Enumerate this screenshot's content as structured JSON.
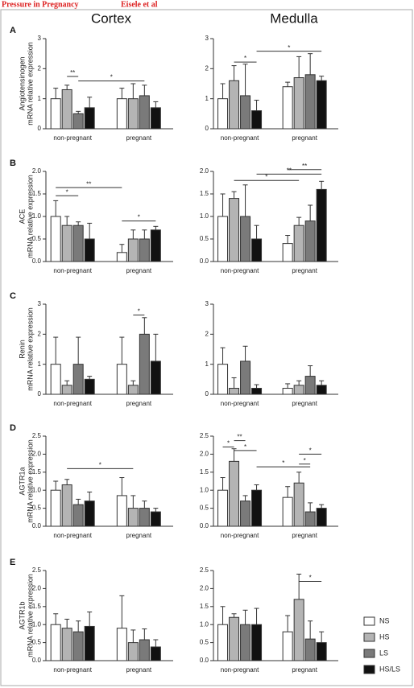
{
  "header": {
    "title": "Pressure in Pregnancy",
    "authors": "Eisele et al"
  },
  "columns": [
    "Cortex",
    "Medulla"
  ],
  "panels": [
    "A",
    "B",
    "C",
    "D",
    "E"
  ],
  "legend": [
    {
      "name": "NS",
      "color": "#ffffff"
    },
    {
      "name": "HS",
      "color": "#b4b4b4"
    },
    {
      "name": "LS",
      "color": "#7a7a7a"
    },
    {
      "name": "HS/LS",
      "color": "#111111"
    }
  ],
  "chart_data": [
    {
      "type": "bar",
      "ylabel": [
        "Angiotensinogen",
        "mRNA relative expression"
      ],
      "categories": [
        "non-pregnant",
        "pregnant"
      ],
      "ylim": [
        0,
        3
      ],
      "yticks": [
        0,
        1,
        2,
        3
      ],
      "series": [
        {
          "values": [
            1.0,
            1.0
          ],
          "errors": [
            0.35,
            0.35
          ]
        },
        {
          "values": [
            1.3,
            1.0
          ],
          "errors": [
            0.15,
            0.5
          ]
        },
        {
          "values": [
            0.5,
            1.1
          ],
          "errors": [
            0.08,
            0.35
          ]
        },
        {
          "values": [
            0.7,
            0.7
          ],
          "errors": [
            0.35,
            0.2
          ]
        }
      ],
      "annotations": [
        "**",
        "*"
      ]
    },
    {
      "type": "bar",
      "categories": [
        "non-pregnant",
        "pregnant"
      ],
      "ylim": [
        0,
        3
      ],
      "yticks": [
        0,
        1,
        2,
        3
      ],
      "series": [
        {
          "values": [
            1.0,
            1.4
          ],
          "errors": [
            0.5,
            0.15
          ]
        },
        {
          "values": [
            1.6,
            1.7
          ],
          "errors": [
            0.5,
            0.7
          ]
        },
        {
          "values": [
            1.1,
            1.8
          ],
          "errors": [
            1.05,
            0.7
          ]
        },
        {
          "values": [
            0.6,
            1.6
          ],
          "errors": [
            0.35,
            0.15
          ]
        }
      ],
      "annotations": [
        "*",
        "*"
      ]
    },
    {
      "type": "bar",
      "ylabel": [
        "ACE",
        "mRNA relative expression"
      ],
      "categories": [
        "non-pregnant",
        "pregnant"
      ],
      "ylim": [
        0,
        2
      ],
      "yticks": [
        {
          "value": 0,
          "label": "0.0"
        },
        {
          "value": 0.5,
          "label": "0.5"
        },
        {
          "value": 1,
          "label": "1.0"
        },
        {
          "value": 1.5,
          "label": "1.5"
        },
        {
          "value": 2,
          "label": "2.0"
        }
      ],
      "series": [
        {
          "values": [
            1.0,
            0.2
          ],
          "errors": [
            0.35,
            0.18
          ]
        },
        {
          "values": [
            0.8,
            0.5
          ],
          "errors": [
            0.2,
            0.2
          ]
        },
        {
          "values": [
            0.8,
            0.5
          ],
          "errors": [
            0.08,
            0.2
          ]
        },
        {
          "values": [
            0.5,
            0.7
          ],
          "errors": [
            0.35,
            0.08
          ]
        }
      ],
      "annotations": [
        "**",
        "*",
        "*"
      ]
    },
    {
      "type": "bar",
      "categories": [
        "non-pregnant",
        "pregnant"
      ],
      "ylim": [
        0,
        2
      ],
      "yticks": [
        {
          "value": 0,
          "label": "0.0"
        },
        {
          "value": 0.5,
          "label": "0.5"
        },
        {
          "value": 1,
          "label": "1.0"
        },
        {
          "value": 1.5,
          "label": "1.5"
        },
        {
          "value": 2,
          "label": "2.0"
        }
      ],
      "series": [
        {
          "values": [
            1.0,
            0.4
          ],
          "errors": [
            0.5,
            0.18
          ]
        },
        {
          "values": [
            1.4,
            0.8
          ],
          "errors": [
            0.15,
            0.18
          ]
        },
        {
          "values": [
            1.0,
            0.9
          ],
          "errors": [
            0.7,
            0.35
          ]
        },
        {
          "values": [
            0.5,
            1.6
          ],
          "errors": [
            0.3,
            0.18
          ]
        }
      ],
      "annotations": [
        "**",
        "**",
        "*"
      ]
    },
    {
      "type": "bar",
      "ylabel": [
        "Renin",
        "mRNA relative expression"
      ],
      "categories": [
        "non-pregnant",
        "pregnant"
      ],
      "ylim": [
        0,
        3
      ],
      "yticks": [
        0,
        1,
        2,
        3
      ],
      "series": [
        {
          "values": [
            1.0,
            1.0
          ],
          "errors": [
            0.9,
            0.9
          ]
        },
        {
          "values": [
            0.3,
            0.3
          ],
          "errors": [
            0.15,
            0.15
          ]
        },
        {
          "values": [
            1.0,
            2.0
          ],
          "errors": [
            0.9,
            0.55
          ]
        },
        {
          "values": [
            0.5,
            1.1
          ],
          "errors": [
            0.1,
            0.9
          ]
        }
      ],
      "annotations": [
        "*"
      ]
    },
    {
      "type": "bar",
      "categories": [
        "non-pregnant",
        "pregnant"
      ],
      "ylim": [
        0,
        3
      ],
      "yticks": [
        0,
        1,
        2,
        3
      ],
      "series": [
        {
          "values": [
            1.0,
            0.2
          ],
          "errors": [
            0.55,
            0.15
          ]
        },
        {
          "values": [
            0.2,
            0.3
          ],
          "errors": [
            0.35,
            0.15
          ]
        },
        {
          "values": [
            1.1,
            0.6
          ],
          "errors": [
            0.5,
            0.35
          ]
        },
        {
          "values": [
            0.2,
            0.3
          ],
          "errors": [
            0.12,
            0.15
          ]
        }
      ],
      "annotations": []
    },
    {
      "type": "bar",
      "ylabel": [
        "AGTR1a",
        "mRNA relative expression"
      ],
      "categories": [
        "non-pregnant",
        "pregnant"
      ],
      "ylim": [
        0,
        2.5
      ],
      "yticks": [
        {
          "value": 0,
          "label": "0.0"
        },
        {
          "value": 0.5,
          "label": "0.5"
        },
        {
          "value": 1,
          "label": "1.0"
        },
        {
          "value": 1.5,
          "label": "1.5"
        },
        {
          "value": 2,
          "label": "2.0"
        },
        {
          "value": 2.5,
          "label": "2.5"
        }
      ],
      "series": [
        {
          "values": [
            1.0,
            0.85
          ],
          "errors": [
            0.25,
            0.5
          ]
        },
        {
          "values": [
            1.15,
            0.5
          ],
          "errors": [
            0.15,
            0.35
          ]
        },
        {
          "values": [
            0.6,
            0.5
          ],
          "errors": [
            0.15,
            0.2
          ]
        },
        {
          "values": [
            0.7,
            0.4
          ],
          "errors": [
            0.25,
            0.1
          ]
        }
      ],
      "annotations": [
        "*"
      ]
    },
    {
      "type": "bar",
      "categories": [
        "non-pregnant",
        "pregnant"
      ],
      "ylim": [
        0,
        2.5
      ],
      "yticks": [
        {
          "value": 0,
          "label": "0.0"
        },
        {
          "value": 0.5,
          "label": "0.5"
        },
        {
          "value": 1,
          "label": "1.0"
        },
        {
          "value": 1.5,
          "label": "1.5"
        },
        {
          "value": 2,
          "label": "2.0"
        },
        {
          "value": 2.5,
          "label": "2.5"
        }
      ],
      "series": [
        {
          "values": [
            1.0,
            0.8
          ],
          "errors": [
            0.35,
            0.3
          ]
        },
        {
          "values": [
            1.8,
            1.2
          ],
          "errors": [
            0.35,
            0.3
          ]
        },
        {
          "values": [
            0.7,
            0.4
          ],
          "errors": [
            0.15,
            0.25
          ]
        },
        {
          "values": [
            1.0,
            0.5
          ],
          "errors": [
            0.15,
            0.1
          ]
        }
      ],
      "annotations": [
        "*",
        "**",
        "*",
        "*",
        "*",
        "*"
      ]
    },
    {
      "type": "bar",
      "ylabel": [
        "AGTR1b",
        "mRNA relative expression"
      ],
      "categories": [
        "non-pregnant",
        "pregnant"
      ],
      "ylim": [
        0,
        2.5
      ],
      "yticks": [
        {
          "value": 0,
          "label": "0.0"
        },
        {
          "value": 0.5,
          "label": "0.5"
        },
        {
          "value": 1,
          "label": "1.0"
        },
        {
          "value": 1.5,
          "label": "1.5"
        },
        {
          "value": 2,
          "label": "2.0"
        },
        {
          "value": 2.5,
          "label": "2.5"
        }
      ],
      "series": [
        {
          "values": [
            1.0,
            0.9
          ],
          "errors": [
            0.3,
            0.9
          ]
        },
        {
          "values": [
            0.9,
            0.5
          ],
          "errors": [
            0.25,
            0.35
          ]
        },
        {
          "values": [
            0.8,
            0.58
          ],
          "errors": [
            0.3,
            0.3
          ]
        },
        {
          "values": [
            0.95,
            0.38
          ],
          "errors": [
            0.4,
            0.2
          ]
        }
      ],
      "annotations": []
    },
    {
      "type": "bar",
      "categories": [
        "non-pregnant",
        "pregnant"
      ],
      "ylim": [
        0,
        2.5
      ],
      "yticks": [
        {
          "value": 0,
          "label": "0.0"
        },
        {
          "value": 0.5,
          "label": "0.5"
        },
        {
          "value": 1,
          "label": "1.0"
        },
        {
          "value": 1.5,
          "label": "1.5"
        },
        {
          "value": 2,
          "label": "2.0"
        },
        {
          "value": 2.5,
          "label": "2.5"
        }
      ],
      "series": [
        {
          "values": [
            1.0,
            0.8
          ],
          "errors": [
            0.5,
            0.45
          ]
        },
        {
          "values": [
            1.2,
            1.7
          ],
          "errors": [
            0.1,
            0.7
          ]
        },
        {
          "values": [
            1.0,
            0.6
          ],
          "errors": [
            0.4,
            0.5
          ]
        },
        {
          "values": [
            1.0,
            0.5
          ],
          "errors": [
            0.45,
            0.3
          ]
        }
      ],
      "annotations": [
        "*"
      ]
    }
  ]
}
